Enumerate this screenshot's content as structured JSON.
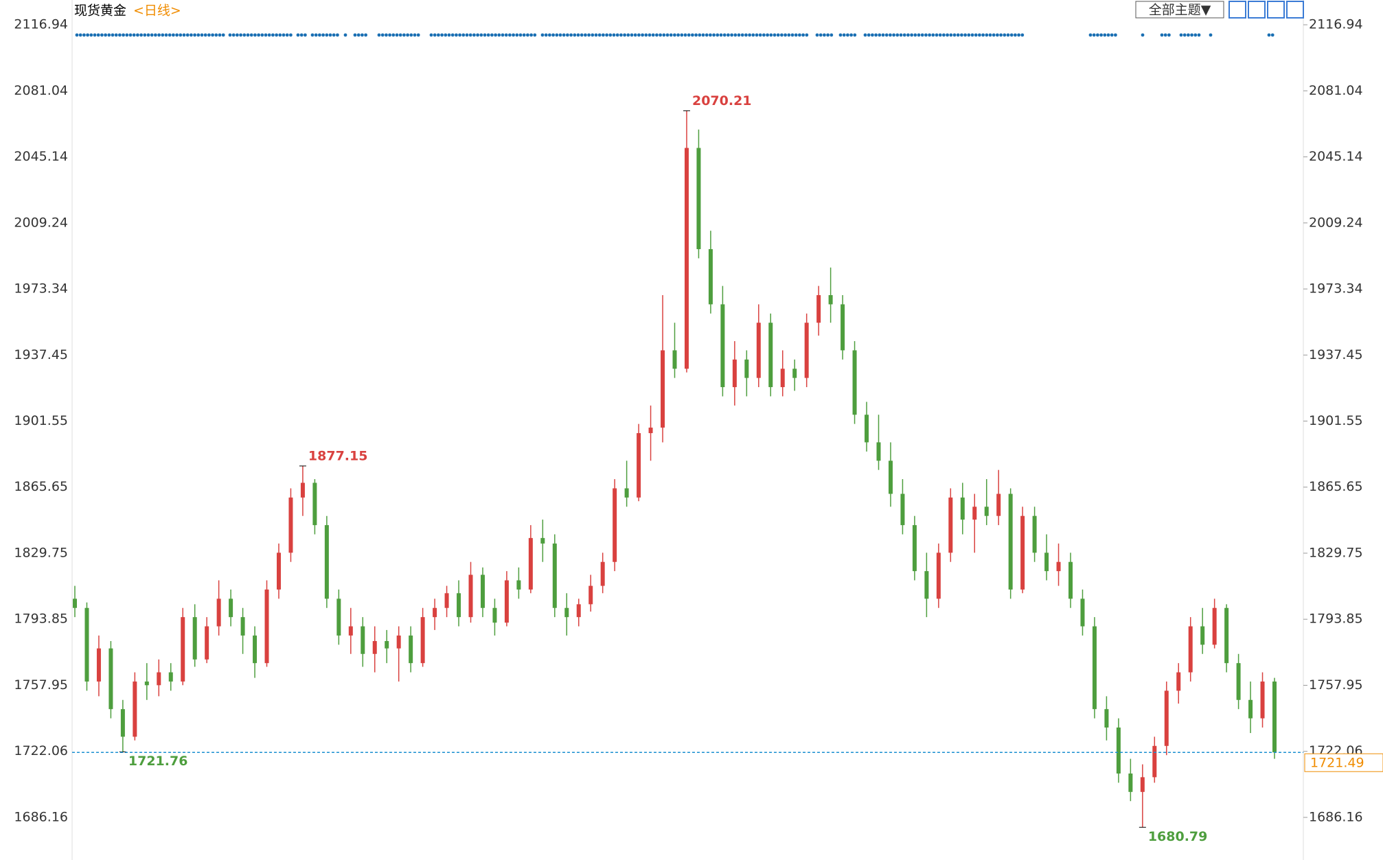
{
  "chart_data": {
    "type": "candlestick",
    "title": "现货黄金",
    "subtitle": "<日线>",
    "theme_button": "全部主题▼",
    "up_color": "#d9413f",
    "down_color": "#4e9e3e",
    "ylim": [
      1663,
      2130.4
    ],
    "yticks": [
      1686.16,
      1722.06,
      1757.95,
      1793.85,
      1829.75,
      1865.65,
      1901.55,
      1937.45,
      1973.34,
      2009.24,
      2045.14,
      2081.04,
      2116.94
    ],
    "open": [
      1805,
      1800,
      1760,
      1778,
      1745,
      1730,
      1760,
      1758,
      1765,
      1760,
      1795,
      1772,
      1790,
      1805,
      1795,
      1785,
      1770,
      1810,
      1830,
      1860,
      1868,
      1845,
      1805,
      1785,
      1790,
      1775,
      1782,
      1778,
      1785,
      1770,
      1795,
      1800,
      1808,
      1795,
      1818,
      1800,
      1792,
      1815,
      1810,
      1838,
      1835,
      1800,
      1795,
      1802,
      1812,
      1825,
      1865,
      1860,
      1895,
      1898,
      1940,
      1930,
      2050,
      1995,
      1965,
      1920,
      1935,
      1925,
      1955,
      1920,
      1930,
      1925,
      1955,
      1970,
      1965,
      1940,
      1905,
      1890,
      1880,
      1862,
      1845,
      1820,
      1805,
      1830,
      1860,
      1848,
      1855,
      1850,
      1862,
      1810,
      1850,
      1830,
      1820,
      1825,
      1805,
      1790,
      1745,
      1735,
      1710,
      1700,
      1708,
      1725,
      1755,
      1765,
      1790,
      1780,
      1800,
      1770,
      1750,
      1740,
      1760
    ],
    "high": [
      1812,
      1803,
      1785,
      1782,
      1750,
      1765,
      1770,
      1772,
      1770,
      1800,
      1802,
      1795,
      1815,
      1810,
      1800,
      1790,
      1815,
      1835,
      1865,
      1877.15,
      1870,
      1850,
      1810,
      1800,
      1795,
      1790,
      1788,
      1790,
      1790,
      1800,
      1805,
      1812,
      1815,
      1825,
      1822,
      1805,
      1820,
      1822,
      1845,
      1848,
      1840,
      1808,
      1805,
      1818,
      1830,
      1870,
      1880,
      1900,
      1910,
      1970,
      1955,
      2070.21,
      2060,
      2005,
      1975,
      1945,
      1940,
      1965,
      1960,
      1940,
      1935,
      1960,
      1975,
      1985,
      1970,
      1945,
      1912,
      1905,
      1890,
      1870,
      1850,
      1830,
      1835,
      1865,
      1868,
      1862,
      1870,
      1875,
      1865,
      1855,
      1855,
      1840,
      1835,
      1830,
      1810,
      1795,
      1752,
      1740,
      1718,
      1715,
      1730,
      1760,
      1770,
      1795,
      1800,
      1805,
      1802,
      1775,
      1760,
      1765,
      1762
    ],
    "low": [
      1795,
      1755,
      1752,
      1740,
      1721.76,
      1728,
      1750,
      1752,
      1755,
      1758,
      1768,
      1770,
      1785,
      1790,
      1775,
      1762,
      1768,
      1805,
      1825,
      1850,
      1840,
      1800,
      1780,
      1775,
      1768,
      1765,
      1770,
      1760,
      1765,
      1768,
      1788,
      1795,
      1790,
      1792,
      1795,
      1785,
      1790,
      1805,
      1808,
      1825,
      1795,
      1785,
      1790,
      1798,
      1808,
      1820,
      1855,
      1858,
      1880,
      1890,
      1925,
      1928,
      1990,
      1960,
      1915,
      1910,
      1915,
      1920,
      1915,
      1915,
      1918,
      1920,
      1948,
      1955,
      1935,
      1900,
      1885,
      1875,
      1855,
      1840,
      1815,
      1795,
      1800,
      1825,
      1840,
      1830,
      1845,
      1845,
      1805,
      1808,
      1825,
      1815,
      1812,
      1800,
      1785,
      1740,
      1728,
      1705,
      1695,
      1680.79,
      1705,
      1720,
      1748,
      1760,
      1775,
      1778,
      1765,
      1745,
      1732,
      1735,
      1718
    ],
    "close": [
      1800,
      1760,
      1778,
      1745,
      1730,
      1760,
      1758,
      1765,
      1760,
      1795,
      1772,
      1790,
      1805,
      1795,
      1785,
      1770,
      1810,
      1830,
      1860,
      1868,
      1845,
      1805,
      1785,
      1790,
      1775,
      1782,
      1778,
      1785,
      1770,
      1795,
      1800,
      1808,
      1795,
      1818,
      1800,
      1792,
      1815,
      1810,
      1838,
      1835,
      1800,
      1795,
      1802,
      1812,
      1825,
      1865,
      1860,
      1895,
      1898,
      1940,
      1930,
      2050,
      1995,
      1965,
      1920,
      1935,
      1925,
      1955,
      1920,
      1930,
      1925,
      1955,
      1970,
      1965,
      1940,
      1905,
      1890,
      1880,
      1862,
      1845,
      1820,
      1805,
      1830,
      1860,
      1848,
      1855,
      1850,
      1862,
      1810,
      1850,
      1830,
      1820,
      1825,
      1805,
      1790,
      1745,
      1735,
      1710,
      1700,
      1708,
      1725,
      1755,
      1765,
      1790,
      1780,
      1800,
      1770,
      1750,
      1740,
      1760,
      1721.49
    ]
  }
}
